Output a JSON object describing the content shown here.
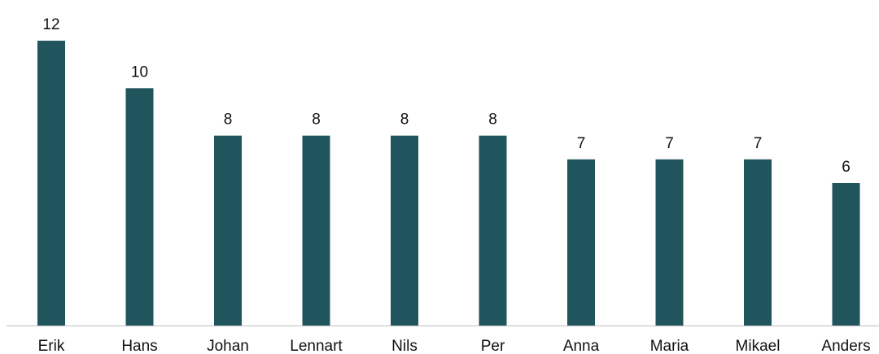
{
  "chart_data": {
    "type": "bar",
    "title": "",
    "xlabel": "",
    "ylabel": "",
    "categories": [
      "Erik",
      "Hans",
      "Johan",
      "Lennart",
      "Nils",
      "Per",
      "Anna",
      "Maria",
      "Mikael",
      "Anders"
    ],
    "values": [
      12,
      10,
      8,
      8,
      8,
      8,
      7,
      7,
      7,
      6
    ],
    "ylim": [
      0,
      12
    ],
    "grid": false,
    "legend": "none",
    "data_labels": true,
    "colors": {
      "bar": "#20555d",
      "axis": "#bfbfbf",
      "text": "#111111"
    }
  }
}
